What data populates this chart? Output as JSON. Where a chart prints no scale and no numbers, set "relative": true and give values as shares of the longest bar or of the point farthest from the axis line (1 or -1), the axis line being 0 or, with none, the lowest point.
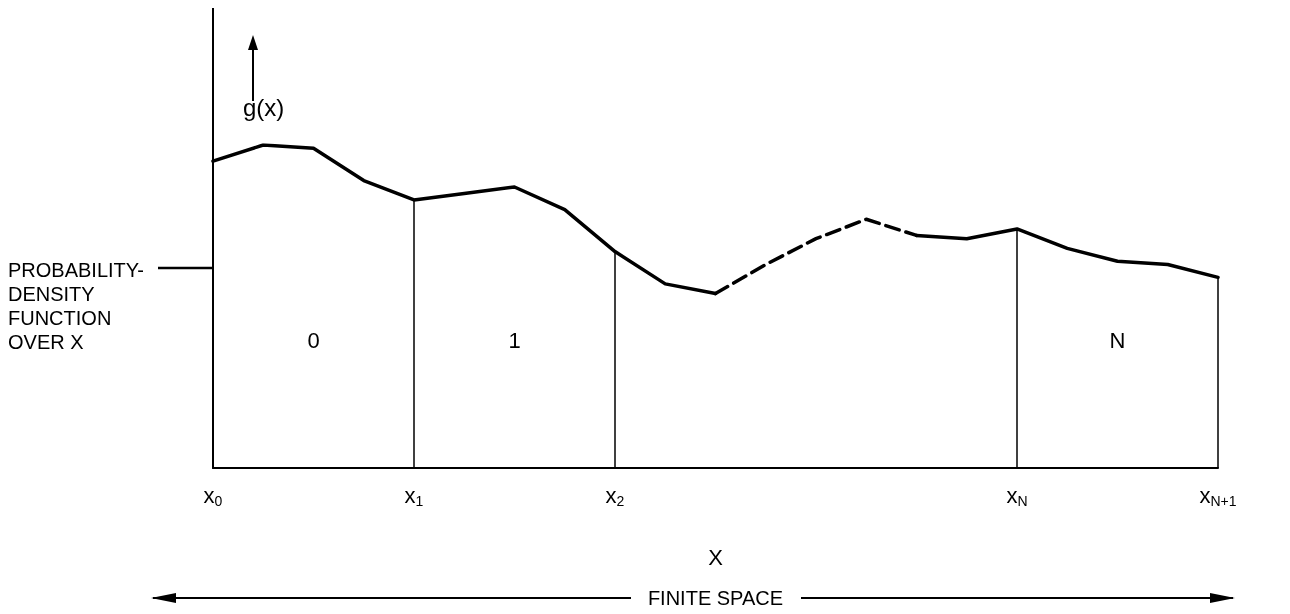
{
  "chart_data": {
    "type": "line",
    "relative": true,
    "marker": "none",
    "ylabel": "g(x)",
    "xlabel": "X",
    "categories": [
      "x$_{0}$",
      null,
      null,
      null,
      "x$_{1}$",
      null,
      null,
      null,
      "x$_{2}$",
      null,
      null,
      null,
      null,
      null,
      null,
      null,
      "x$_{N}$",
      null,
      null,
      null,
      "x$_{N+1}$"
    ],
    "series": [
      {
        "color": "#000000",
        "line_style": "solid",
        "values": [
          0.95,
          1,
          0.99,
          0.89,
          0.83,
          0.85,
          0.87,
          0.8,
          0.67,
          0.57,
          0.54,
          null,
          null,
          null,
          0.72,
          0.71,
          0.74,
          0.68,
          0.64,
          0.63,
          0.59
        ]
      },
      {
        "color": "#000000",
        "line_style": "dashed",
        "values": [
          null,
          null,
          null,
          null,
          null,
          null,
          null,
          null,
          null,
          null,
          0.54,
          0.63,
          0.71,
          0.77,
          0.72,
          null,
          null,
          null,
          null,
          null,
          null
        ]
      }
    ],
    "ref_lines": [
      {
        "axis": "x",
        "value": "x$_{1}$"
      },
      {
        "axis": "x",
        "value": "x$_{2}$"
      },
      {
        "axis": "x",
        "value": "x$_{N}$"
      },
      {
        "axis": "x",
        "value": "x$_{N+1}$"
      }
    ],
    "annotations": [
      "PROBABILITY-\nDENSITY\nFUNCTION\nOVER X",
      "FINITE SPACE",
      "0",
      "1",
      "N"
    ]
  }
}
